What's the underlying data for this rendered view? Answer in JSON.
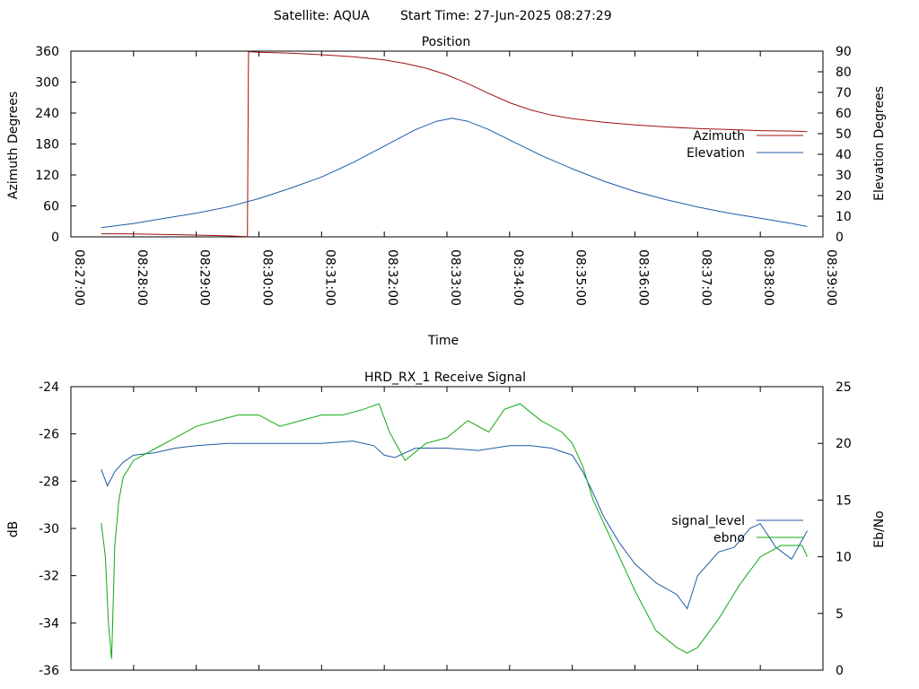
{
  "header": {
    "satellite_label": "Satellite: AQUA",
    "start_label": "Start Time: 27-Jun-2025 08:27:29"
  },
  "colors": {
    "azimuth": "#a01010",
    "elevation": "#1f5aa6",
    "signal_level": "#1f5aa6",
    "ebno": "#11aa11"
  },
  "chart_data": [
    {
      "type": "line",
      "title": "Position",
      "xlabel": "Time",
      "ylabel": "Azimuth Degrees",
      "y2label": "Elevation Degrees",
      "ylim": [
        0,
        360
      ],
      "y2lim": [
        0,
        90
      ],
      "yticks": [
        0,
        60,
        120,
        180,
        240,
        300,
        360
      ],
      "y2ticks": [
        0,
        10,
        20,
        30,
        40,
        50,
        60,
        70,
        80,
        90
      ],
      "xlim": [
        "08:27:00",
        "08:39:00"
      ],
      "xticks": [
        "08:27:00",
        "08:28:00",
        "08:29:00",
        "08:30:00",
        "08:31:00",
        "08:32:00",
        "08:33:00",
        "08:34:00",
        "08:35:00",
        "08:36:00",
        "08:37:00",
        "08:38:00",
        "08:39:00"
      ],
      "legend_position": "right",
      "series": [
        {
          "name": "Azimuth",
          "axis": "y1",
          "x": [
            "08:27:29",
            "08:28:00",
            "08:28:30",
            "08:29:00",
            "08:29:30",
            "08:29:49",
            "08:29:50",
            "08:30:00",
            "08:30:30",
            "08:31:00",
            "08:31:30",
            "08:32:00",
            "08:32:20",
            "08:32:40",
            "08:33:00",
            "08:33:20",
            "08:33:40",
            "08:34:00",
            "08:34:20",
            "08:34:40",
            "08:35:00",
            "08:35:30",
            "08:36:00",
            "08:36:30",
            "08:37:00",
            "08:37:30",
            "08:38:00",
            "08:38:30",
            "08:38:45"
          ],
          "values": [
            6,
            5.5,
            4.5,
            3.5,
            2,
            0.5,
            359,
            358,
            356,
            353,
            349,
            343,
            336,
            327,
            314,
            297,
            278,
            260,
            246,
            236,
            229,
            222,
            217,
            213,
            210,
            208,
            206,
            205,
            204
          ]
        },
        {
          "name": "Elevation",
          "axis": "y2",
          "x": [
            "08:27:29",
            "08:28:00",
            "08:28:30",
            "08:29:00",
            "08:29:30",
            "08:30:00",
            "08:30:30",
            "08:31:00",
            "08:31:30",
            "08:32:00",
            "08:32:30",
            "08:32:50",
            "08:33:05",
            "08:33:20",
            "08:33:40",
            "08:34:00",
            "08:34:30",
            "08:35:00",
            "08:35:30",
            "08:36:00",
            "08:36:30",
            "08:37:00",
            "08:37:30",
            "08:38:00",
            "08:38:30",
            "08:38:45"
          ],
          "values": [
            4.5,
            6.5,
            9,
            11.5,
            14.5,
            18.5,
            23.5,
            29,
            36,
            44,
            52,
            56,
            57.5,
            56,
            52,
            47,
            39.5,
            33,
            27,
            22,
            18,
            14.5,
            11.5,
            9,
            6.5,
            5
          ]
        }
      ]
    },
    {
      "type": "line",
      "title": "HRD_RX_1 Receive Signal",
      "ylabel": "dB",
      "y2label": "Eb/No",
      "ylim": [
        -36,
        -24
      ],
      "y2lim": [
        0,
        25
      ],
      "yticks": [
        -36,
        -34,
        -32,
        -30,
        -28,
        -26,
        -24
      ],
      "y2ticks": [
        0,
        5,
        10,
        15,
        20,
        25
      ],
      "xlim": [
        "08:27:00",
        "08:39:00"
      ],
      "legend_position": "right",
      "series": [
        {
          "name": "signal_level",
          "axis": "y1",
          "x": [
            "08:27:29",
            "08:27:35",
            "08:27:42",
            "08:27:50",
            "08:28:00",
            "08:28:20",
            "08:28:40",
            "08:29:00",
            "08:29:30",
            "08:30:00",
            "08:30:30",
            "08:31:00",
            "08:31:30",
            "08:31:50",
            "08:32:00",
            "08:32:10",
            "08:32:30",
            "08:33:00",
            "08:33:30",
            "08:34:00",
            "08:34:20",
            "08:34:40",
            "08:35:00",
            "08:35:10",
            "08:35:20",
            "08:35:30",
            "08:35:45",
            "08:36:00",
            "08:36:20",
            "08:36:40",
            "08:36:50",
            "08:37:00",
            "08:37:10",
            "08:37:20",
            "08:37:35",
            "08:37:50",
            "08:38:00",
            "08:38:15",
            "08:38:30",
            "08:38:45"
          ],
          "values": [
            -27.5,
            -28.2,
            -27.6,
            -27.2,
            -26.9,
            -26.8,
            -26.6,
            -26.5,
            -26.4,
            -26.4,
            -26.4,
            -26.4,
            -26.3,
            -26.5,
            -26.9,
            -27.0,
            -26.6,
            -26.6,
            -26.7,
            -26.5,
            -26.5,
            -26.6,
            -26.9,
            -27.6,
            -28.5,
            -29.5,
            -30.6,
            -31.5,
            -32.3,
            -32.8,
            -33.4,
            -32.0,
            -31.5,
            -31.0,
            -30.8,
            -30.0,
            -29.8,
            -30.8,
            -31.3,
            -30.1
          ]
        },
        {
          "name": "ebno",
          "axis": "y2",
          "x": [
            "08:27:29",
            "08:27:33",
            "08:27:36",
            "08:27:39",
            "08:27:42",
            "08:27:46",
            "08:27:50",
            "08:28:00",
            "08:28:20",
            "08:28:40",
            "08:29:00",
            "08:29:20",
            "08:29:40",
            "08:30:00",
            "08:30:20",
            "08:30:40",
            "08:31:00",
            "08:31:20",
            "08:31:40",
            "08:31:55",
            "08:32:05",
            "08:32:20",
            "08:32:40",
            "08:33:00",
            "08:33:20",
            "08:33:40",
            "08:33:55",
            "08:34:10",
            "08:34:30",
            "08:34:50",
            "08:35:00",
            "08:35:10",
            "08:35:20",
            "08:35:40",
            "08:36:00",
            "08:36:20",
            "08:36:40",
            "08:36:50",
            "08:37:00",
            "08:37:20",
            "08:37:40",
            "08:38:00",
            "08:38:20",
            "08:38:40",
            "08:38:45"
          ],
          "values": [
            13,
            10,
            4,
            1,
            11,
            15,
            17,
            18.5,
            19.5,
            20.5,
            21.5,
            22,
            22.5,
            22.5,
            21.5,
            22,
            22.5,
            22.5,
            23,
            23.5,
            21,
            18.5,
            20,
            20.5,
            22,
            21,
            23,
            23.5,
            22,
            21,
            20,
            18,
            15,
            11,
            7,
            3.5,
            2,
            1.5,
            2,
            4.5,
            7.5,
            10,
            11,
            11,
            10
          ]
        }
      ]
    }
  ]
}
